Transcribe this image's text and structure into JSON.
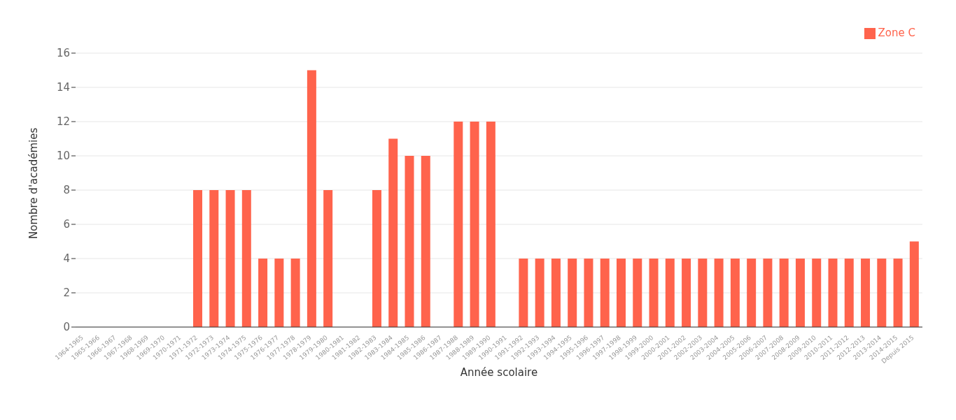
{
  "chart_data": {
    "type": "bar",
    "xlabel": "Année scolaire",
    "ylabel": "Nombre d'académies",
    "categories": [
      "1964-1965",
      "1965-1966",
      "1966-1967",
      "1967-1968",
      "1968-1969",
      "1969-1970",
      "1970-1971",
      "1971-1972",
      "1972-1973",
      "1973-1974",
      "1974-1975",
      "1975-1976",
      "1976-1977",
      "1977-1978",
      "1978-1979",
      "1979-1980",
      "1980-1981",
      "1981-1982",
      "1982-1983",
      "1983-1984",
      "1984-1985",
      "1985-1986",
      "1986-1987",
      "1987-1988",
      "1988-1989",
      "1989-1990",
      "1990-1991",
      "1991-1992",
      "1992-1993",
      "1993-1994",
      "1994-1995",
      "1995-1996",
      "1996-1997",
      "1997-1998",
      "1998-1999",
      "1999-2000",
      "2000-2001",
      "2001-2002",
      "2002-2003",
      "2003-2004",
      "2004-2005",
      "2005-2006",
      "2006-2007",
      "2007-2008",
      "2008-2009",
      "2009-2010",
      "2010-2011",
      "2011-2012",
      "2012-2013",
      "2013-2014",
      "2014-2015",
      "Depuis 2015"
    ],
    "series": [
      {
        "name": "Zone C",
        "color": "#ff634c",
        "values": [
          0,
          0,
          0,
          0,
          0,
          0,
          0,
          8,
          8,
          8,
          8,
          4,
          4,
          4,
          15,
          8,
          0,
          0,
          8,
          11,
          10,
          10,
          0,
          12,
          12,
          12,
          0,
          4,
          4,
          4,
          4,
          4,
          4,
          4,
          4,
          4,
          4,
          4,
          4,
          4,
          4,
          4,
          4,
          4,
          4,
          4,
          4,
          4,
          4,
          4,
          4,
          5
        ]
      }
    ],
    "ylim": [
      0,
      16
    ],
    "yticks": [
      0,
      2,
      4,
      6,
      8,
      10,
      12,
      14,
      16
    ],
    "grid": "y",
    "legend": "top right"
  }
}
